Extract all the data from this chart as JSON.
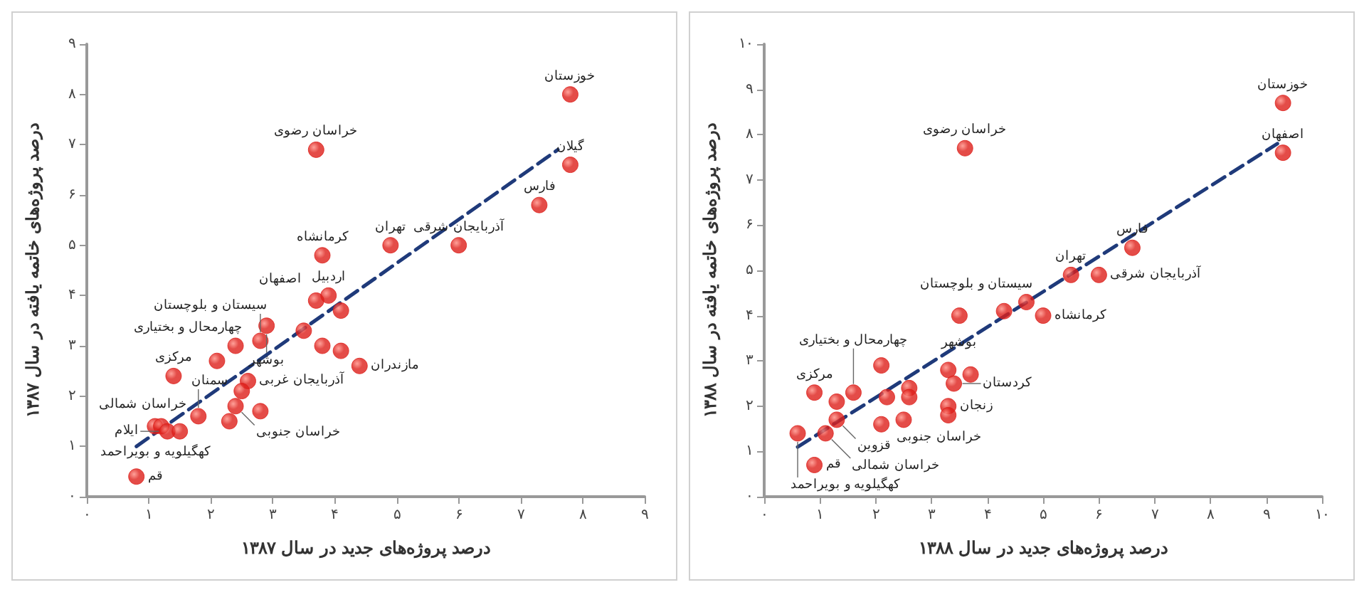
{
  "chart_data": [
    {
      "type": "scatter",
      "xlabel": "درصد پروژه‌های جدید در سال ۱۳۸۷",
      "ylabel": "درصد پروژه‌های خاتمه یافته در سال ۱۳۸۷",
      "xlim": [
        0,
        9
      ],
      "ylim": [
        0,
        9
      ],
      "xticks": [
        {
          "value": 0,
          "label": "۰"
        },
        {
          "value": 1,
          "label": "۱"
        },
        {
          "value": 2,
          "label": "۲"
        },
        {
          "value": 3,
          "label": "۳"
        },
        {
          "value": 4,
          "label": "۴"
        },
        {
          "value": 5,
          "label": "۵"
        },
        {
          "value": 6,
          "label": "۶"
        },
        {
          "value": 7,
          "label": "۷"
        },
        {
          "value": 8,
          "label": "۸"
        },
        {
          "value": 9,
          "label": "۹"
        }
      ],
      "yticks": [
        {
          "value": 0,
          "label": "۰"
        },
        {
          "value": 1,
          "label": "۱"
        },
        {
          "value": 2,
          "label": "۲"
        },
        {
          "value": 3,
          "label": "۳"
        },
        {
          "value": 4,
          "label": "۴"
        },
        {
          "value": 5,
          "label": "۵"
        },
        {
          "value": 6,
          "label": "۶"
        },
        {
          "value": 7,
          "label": "۷"
        },
        {
          "value": 8,
          "label": "۸"
        },
        {
          "value": 9,
          "label": "۹"
        }
      ],
      "series": [
        {
          "marker": "circle",
          "color": "#dd1f1a",
          "x": [
            7.8,
            3.7,
            7.8,
            7.3,
            4.9,
            6.0,
            3.8,
            3.7,
            3.9,
            4.1,
            2.9,
            3.5,
            3.8,
            4.1,
            4.4,
            2.8,
            2.4,
            2.1,
            1.4,
            2.6,
            2.5,
            2.4,
            2.8,
            2.3,
            1.8,
            1.1,
            1.2,
            1.3,
            1.5,
            0.8
          ],
          "values": [
            8.0,
            6.9,
            6.6,
            5.8,
            5.0,
            5.0,
            4.8,
            3.9,
            4.0,
            3.7,
            3.4,
            3.3,
            3.0,
            2.9,
            2.6,
            3.1,
            3.0,
            2.7,
            2.4,
            2.3,
            2.1,
            1.8,
            1.7,
            1.5,
            1.6,
            1.4,
            1.4,
            1.3,
            1.3,
            0.4
          ]
        },
        {
          "type": "line",
          "marker": "none",
          "line_style": "dashed",
          "color": "#1f3a7a",
          "x": [
            0.8,
            7.6
          ],
          "values": [
            1.0,
            6.9
          ]
        }
      ],
      "annotations": [
        {
          "text": "خوزستان",
          "x": 7.8,
          "y": 8.0
        },
        {
          "text": "خراسان رضوی",
          "x": 3.7,
          "y": 6.9
        },
        {
          "text": "گیلان",
          "x": 7.8,
          "y": 6.6
        },
        {
          "text": "فارس",
          "x": 7.3,
          "y": 5.8
        },
        {
          "text": "تهران",
          "x": 4.9,
          "y": 5.0
        },
        {
          "text": "آذربایجان شرقی",
          "x": 6.0,
          "y": 5.0
        },
        {
          "text": "کرمانشاه",
          "x": 3.8,
          "y": 4.8
        },
        {
          "text": "اصفهان",
          "x": 3.7,
          "y": 3.9
        },
        {
          "text": "اردبیل",
          "x": 3.9,
          "y": 4.0
        },
        {
          "text": "بوشهر",
          "x": 2.9,
          "y": 3.4
        },
        {
          "text": "سیستان و بلوچستان",
          "x": 2.8,
          "y": 3.1
        },
        {
          "text": "چهارمحال و بختیاری",
          "x": 2.4,
          "y": 3.0
        },
        {
          "text": "مرکزی",
          "x": 1.4,
          "y": 2.4
        },
        {
          "text": "آذربایجان غربی",
          "x": 2.6,
          "y": 2.3
        },
        {
          "text": "مازندران",
          "x": 4.4,
          "y": 2.6
        },
        {
          "text": "سمنان",
          "x": 1.8,
          "y": 1.6
        },
        {
          "text": "خراسان جنوبی",
          "x": 2.4,
          "y": 1.8
        },
        {
          "text": "خراسان شمالی",
          "x": 1.5,
          "y": 1.3
        },
        {
          "text": "کهگیلویه و بویراحمد",
          "x": 1.1,
          "y": 1.4
        },
        {
          "text": "ایلام",
          "x": 1.3,
          "y": 1.3
        },
        {
          "text": "قم",
          "x": 0.8,
          "y": 0.4
        }
      ]
    },
    {
      "type": "scatter",
      "xlabel": "درصد پروژه‌های جدید در سال ۱۳۸۸",
      "ylabel": "درصد پروژه‌های خاتمه یافته در سال ۱۳۸۸",
      "xlim": [
        0,
        10
      ],
      "ylim": [
        0,
        10
      ],
      "xticks": [
        {
          "value": 0,
          "label": "۰"
        },
        {
          "value": 1,
          "label": "۱"
        },
        {
          "value": 2,
          "label": "۲"
        },
        {
          "value": 3,
          "label": "۳"
        },
        {
          "value": 4,
          "label": "۴"
        },
        {
          "value": 5,
          "label": "۵"
        },
        {
          "value": 6,
          "label": "۶"
        },
        {
          "value": 7,
          "label": "۷"
        },
        {
          "value": 8,
          "label": "۸"
        },
        {
          "value": 9,
          "label": "۹"
        },
        {
          "value": 10,
          "label": "۱۰"
        }
      ],
      "yticks": [
        {
          "value": 0,
          "label": "۰"
        },
        {
          "value": 1,
          "label": "۱"
        },
        {
          "value": 2,
          "label": "۲"
        },
        {
          "value": 3,
          "label": "۳"
        },
        {
          "value": 4,
          "label": "۴"
        },
        {
          "value": 5,
          "label": "۵"
        },
        {
          "value": 6,
          "label": "۶"
        },
        {
          "value": 7,
          "label": "۷"
        },
        {
          "value": 8,
          "label": "۸"
        },
        {
          "value": 9,
          "label": "۹"
        },
        {
          "value": 10,
          "label": "۱۰"
        }
      ],
      "series": [
        {
          "marker": "circle",
          "color": "#dd1f1a",
          "x": [
            9.3,
            9.3,
            3.6,
            6.6,
            5.5,
            6.0,
            4.7,
            4.3,
            5.0,
            3.5,
            2.1,
            3.3,
            3.7,
            3.4,
            2.6,
            0.9,
            1.6,
            2.6,
            1.3,
            2.2,
            3.3,
            3.3,
            2.5,
            1.3,
            2.1,
            0.6,
            1.1,
            0.9
          ],
          "values": [
            8.7,
            7.6,
            7.7,
            5.5,
            4.9,
            4.9,
            4.3,
            4.1,
            4.0,
            4.0,
            2.9,
            2.8,
            2.7,
            2.5,
            2.4,
            2.3,
            2.3,
            2.2,
            2.1,
            2.2,
            2.0,
            1.8,
            1.7,
            1.7,
            1.6,
            1.4,
            1.4,
            0.7
          ]
        },
        {
          "type": "line",
          "marker": "none",
          "line_style": "dashed",
          "color": "#1f3a7a",
          "x": [
            0.6,
            9.2
          ],
          "values": [
            1.1,
            7.8
          ]
        }
      ],
      "annotations": [
        {
          "text": "خوزستان",
          "x": 9.3,
          "y": 8.7
        },
        {
          "text": "اصفهان",
          "x": 9.3,
          "y": 7.6
        },
        {
          "text": "خراسان رضوی",
          "x": 3.6,
          "y": 7.7
        },
        {
          "text": "فارس",
          "x": 6.6,
          "y": 5.5
        },
        {
          "text": "تهران",
          "x": 5.5,
          "y": 4.9
        },
        {
          "text": "آذربایجان شرقی",
          "x": 6.0,
          "y": 4.9
        },
        {
          "text": "سیستان و بلوچستان",
          "x": 4.7,
          "y": 4.3
        },
        {
          "text": "کرمانشاه",
          "x": 5.0,
          "y": 4.0
        },
        {
          "text": "بوشهر",
          "x": 3.5,
          "y": 3.0
        },
        {
          "text": "کردستان",
          "x": 3.4,
          "y": 2.5
        },
        {
          "text": "زنجان",
          "x": 3.3,
          "y": 2.0
        },
        {
          "text": "خراسان جنوبی",
          "x": 2.5,
          "y": 1.7
        },
        {
          "text": "چهارمحال و بختیاری",
          "x": 1.6,
          "y": 2.3
        },
        {
          "text": "مرکزی",
          "x": 0.9,
          "y": 2.3
        },
        {
          "text": "قزوین",
          "x": 1.3,
          "y": 1.7
        },
        {
          "text": "خراسان شمالی",
          "x": 1.1,
          "y": 1.4
        },
        {
          "text": "کهگیلویه و بویراحمد",
          "x": 0.6,
          "y": 1.4
        },
        {
          "text": "قم",
          "x": 0.9,
          "y": 0.7
        }
      ]
    }
  ]
}
